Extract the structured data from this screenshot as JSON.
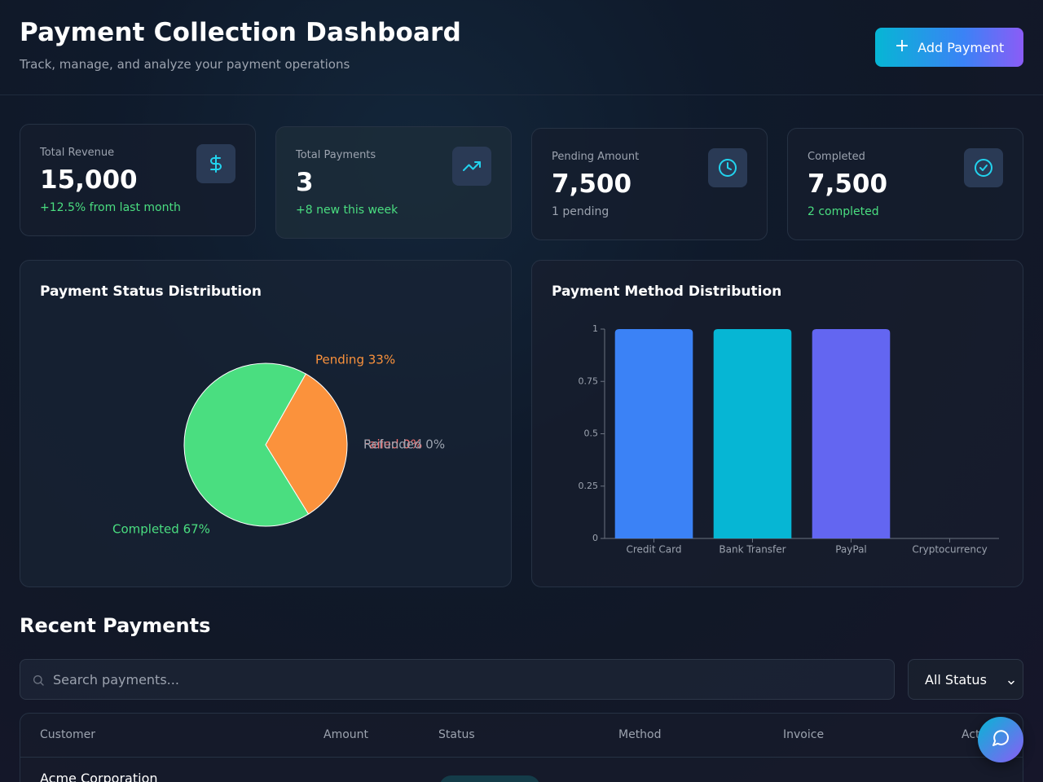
{
  "header": {
    "title": "Payment Collection Dashboard",
    "subtitle": "Track, manage, and analyze your payment operations",
    "add_button_label": "Add Payment"
  },
  "stats": [
    {
      "label": "Total Revenue",
      "value": "15,000",
      "note": "+12.5% from last month",
      "icon": "dollar-icon"
    },
    {
      "label": "Total Payments",
      "value": "3",
      "note": "+8 new this week",
      "icon": "trending-up-icon"
    },
    {
      "label": "Pending Amount",
      "value": "7,500",
      "note": "1 pending",
      "icon": "clock-icon"
    },
    {
      "label": "Completed",
      "value": "7,500",
      "note": "2 completed",
      "icon": "check-circle-icon"
    }
  ],
  "status_panel": {
    "title": "Payment Status Distribution"
  },
  "method_panel": {
    "title": "Payment Method Distribution"
  },
  "chart_data": [
    {
      "type": "pie",
      "title": "Payment Status Distribution",
      "slices": [
        {
          "label": "Pending",
          "value": 33,
          "display": "Pending 33%",
          "color": "#fb923c"
        },
        {
          "label": "Completed",
          "value": 67,
          "display": "Completed 67%",
          "color": "#4ade80"
        },
        {
          "label": "Failed",
          "value": 0,
          "display": "Failed 0%",
          "color": "#f87171"
        },
        {
          "label": "Refunded",
          "value": 0,
          "display": "Refunded 0%",
          "color": "#9ca3af"
        }
      ]
    },
    {
      "type": "bar",
      "title": "Payment Method Distribution",
      "categories": [
        "Credit Card",
        "Bank Transfer",
        "PayPal",
        "Cryptocurrency"
      ],
      "values": [
        1,
        1,
        1,
        0
      ],
      "colors": [
        "#3b82f6",
        "#06b6d4",
        "#6366f1",
        "#8b5cf6"
      ],
      "ylim": [
        0,
        1
      ],
      "yticks": [
        "0",
        "0.25",
        "0.5",
        "0.75",
        "1"
      ]
    }
  ],
  "recent": {
    "title": "Recent Payments",
    "search_placeholder": "Search payments...",
    "status_filter": "All Status",
    "columns": [
      "Customer",
      "Amount",
      "Status",
      "Method",
      "Invoice",
      "Actions"
    ],
    "rows": [
      {
        "customer": "Acme Corporation"
      }
    ]
  },
  "colors": {
    "accent_cyan": "#06b6d4",
    "accent_purple": "#8b5cf6",
    "positive": "#4ade80"
  }
}
